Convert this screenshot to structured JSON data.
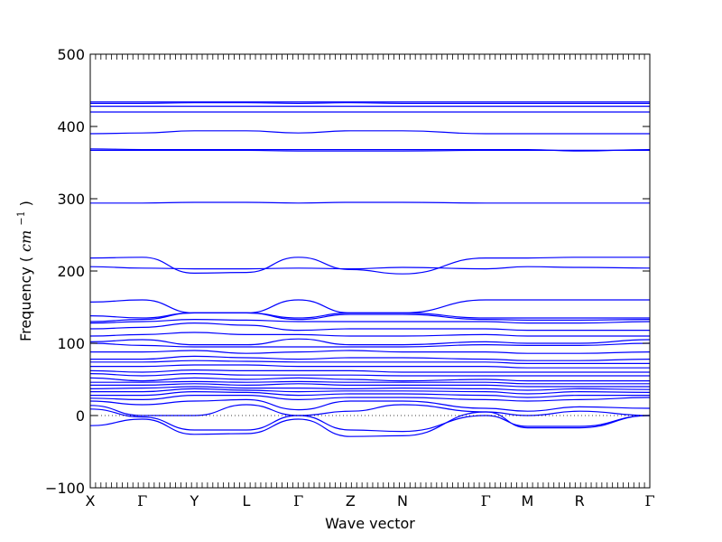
{
  "chart_data": {
    "type": "line",
    "title": "",
    "xlabel": "Wave vector",
    "ylabel": "Frequency",
    "ylabel_unit": "cm",
    "ylabel_unit_exponent": "−1",
    "ylim": [
      -100,
      500
    ],
    "yticks": [
      -100,
      0,
      100,
      200,
      300,
      400,
      500
    ],
    "ytick_labels": [
      "−100",
      "0",
      "100",
      "200",
      "300",
      "400",
      "500"
    ],
    "xlim": [
      0,
      10.75
    ],
    "xticks": [
      0,
      1,
      2,
      3,
      4,
      5,
      6,
      7.6,
      8.4,
      9.4,
      10.75
    ],
    "xtick_labels": [
      "X",
      "Γ",
      "Y",
      "L",
      "Γ",
      "Z",
      "N",
      "Γ",
      "M",
      "R",
      "Γ"
    ],
    "zero_line": 0,
    "line_color": "#0000ff",
    "series": [
      {
        "x": [
          0,
          1,
          2,
          3,
          4,
          5,
          6,
          7.6,
          8.4,
          9.4,
          10.75
        ],
        "y": [
          -14,
          -5,
          -26,
          -25,
          -5,
          -29,
          -28,
          5,
          -17,
          -17,
          0
        ]
      },
      {
        "x": [
          0,
          1,
          2,
          3,
          4,
          5,
          6,
          7.6,
          8.4,
          9.4,
          10.75
        ],
        "y": [
          9,
          -2,
          -20,
          -20,
          0,
          -20,
          -22,
          0,
          -15,
          -15,
          0
        ]
      },
      {
        "x": [
          0,
          1,
          2,
          3,
          4,
          5,
          6,
          7.6,
          8.4,
          9.4,
          10.75
        ],
        "y": [
          14,
          0,
          0,
          15,
          0,
          6,
          15,
          5,
          0,
          6,
          0
        ]
      },
      {
        "x": [
          0,
          1,
          2,
          3,
          4,
          5,
          6,
          7.6,
          8.4,
          9.4,
          10.75
        ],
        "y": [
          20,
          15,
          20,
          22,
          8,
          20,
          20,
          10,
          6,
          12,
          10
        ]
      },
      {
        "x": [
          0,
          1,
          2,
          3,
          4,
          5,
          6,
          7.6,
          8.4,
          9.4,
          10.75
        ],
        "y": [
          24,
          22,
          28,
          28,
          22,
          25,
          25,
          22,
          20,
          22,
          25
        ]
      },
      {
        "x": [
          0,
          1,
          2,
          3,
          4,
          5,
          6,
          7.6,
          8.4,
          9.4,
          10.75
        ],
        "y": [
          28,
          28,
          33,
          32,
          28,
          30,
          30,
          28,
          25,
          28,
          28
        ]
      },
      {
        "x": [
          0,
          1,
          2,
          3,
          4,
          5,
          6,
          7.6,
          8.4,
          9.4,
          10.75
        ],
        "y": [
          33,
          33,
          37,
          35,
          33,
          34,
          34,
          33,
          30,
          33,
          32
        ]
      },
      {
        "x": [
          0,
          1,
          2,
          3,
          4,
          5,
          6,
          7.6,
          8.4,
          9.4,
          10.75
        ],
        "y": [
          37,
          38,
          40,
          38,
          38,
          37,
          38,
          37,
          35,
          37,
          36
        ]
      },
      {
        "x": [
          0,
          1,
          2,
          3,
          4,
          5,
          6,
          7.6,
          8.4,
          9.4,
          10.75
        ],
        "y": [
          42,
          42,
          44,
          42,
          44,
          42,
          42,
          42,
          40,
          40,
          40
        ]
      },
      {
        "x": [
          0,
          1,
          2,
          3,
          4,
          5,
          6,
          7.6,
          8.4,
          9.4,
          10.75
        ],
        "y": [
          46,
          46,
          47,
          46,
          47,
          46,
          46,
          46,
          44,
          44,
          44
        ]
      },
      {
        "x": [
          0,
          1,
          2,
          3,
          4,
          5,
          6,
          7.6,
          8.4,
          9.4,
          10.75
        ],
        "y": [
          52,
          48,
          52,
          50,
          52,
          50,
          48,
          50,
          48,
          48,
          48
        ]
      },
      {
        "x": [
          0,
          1,
          2,
          3,
          4,
          5,
          6,
          7.6,
          8.4,
          9.4,
          10.75
        ],
        "y": [
          58,
          55,
          58,
          56,
          56,
          56,
          55,
          55,
          55,
          55,
          55
        ]
      },
      {
        "x": [
          0,
          1,
          2,
          3,
          4,
          5,
          6,
          7.6,
          8.4,
          9.4,
          10.75
        ],
        "y": [
          62,
          60,
          63,
          62,
          62,
          62,
          60,
          60,
          60,
          60,
          60
        ]
      },
      {
        "x": [
          0,
          1,
          2,
          3,
          4,
          5,
          6,
          7.6,
          8.4,
          9.4,
          10.75
        ],
        "y": [
          68,
          68,
          70,
          70,
          68,
          68,
          68,
          68,
          66,
          66,
          66
        ]
      },
      {
        "x": [
          0,
          1,
          2,
          3,
          4,
          5,
          6,
          7.6,
          8.4,
          9.4,
          10.75
        ],
        "y": [
          74,
          74,
          76,
          75,
          74,
          74,
          74,
          74,
          72,
          72,
          72
        ]
      },
      {
        "x": [
          0,
          1,
          2,
          3,
          4,
          5,
          6,
          7.6,
          8.4,
          9.4,
          10.75
        ],
        "y": [
          78,
          78,
          82,
          80,
          78,
          80,
          80,
          78,
          76,
          76,
          78
        ]
      },
      {
        "x": [
          0,
          1,
          2,
          3,
          4,
          5,
          6,
          7.6,
          8.4,
          9.4,
          10.75
        ],
        "y": [
          88,
          88,
          90,
          86,
          88,
          90,
          88,
          88,
          86,
          86,
          88
        ]
      },
      {
        "x": [
          0,
          1,
          2,
          3,
          4,
          5,
          6,
          7.6,
          8.4,
          9.4,
          10.75
        ],
        "y": [
          100,
          97,
          95,
          95,
          95,
          95,
          95,
          98,
          97,
          97,
          100
        ]
      },
      {
        "x": [
          0,
          1,
          2,
          3,
          4,
          5,
          6,
          7.6,
          8.4,
          9.4,
          10.75
        ],
        "y": [
          102,
          105,
          98,
          98,
          106,
          98,
          98,
          102,
          100,
          100,
          105
        ]
      },
      {
        "x": [
          0,
          1,
          2,
          3,
          4,
          5,
          6,
          7.6,
          8.4,
          9.4,
          10.75
        ],
        "y": [
          110,
          112,
          115,
          112,
          112,
          110,
          110,
          112,
          110,
          110,
          110
        ]
      },
      {
        "x": [
          0,
          1,
          2,
          3,
          4,
          5,
          6,
          7.6,
          8.4,
          9.4,
          10.75
        ],
        "y": [
          120,
          122,
          128,
          125,
          118,
          120,
          120,
          120,
          118,
          118,
          118
        ]
      },
      {
        "x": [
          0,
          1,
          2,
          3,
          4,
          5,
          6,
          7.6,
          8.4,
          9.4,
          10.75
        ],
        "y": [
          128,
          130,
          133,
          132,
          130,
          130,
          130,
          130,
          128,
          128,
          130
        ]
      },
      {
        "x": [
          0,
          1,
          2,
          3,
          4,
          5,
          6,
          7.6,
          8.4,
          9.4,
          10.75
        ],
        "y": [
          130,
          133,
          142,
          142,
          133,
          140,
          140,
          133,
          132,
          132,
          133
        ]
      },
      {
        "x": [
          0,
          1,
          2,
          3,
          4,
          5,
          6,
          7.6,
          8.4,
          9.4,
          10.75
        ],
        "y": [
          138,
          135,
          142,
          142,
          135,
          142,
          142,
          135,
          135,
          135,
          135
        ]
      },
      {
        "x": [
          0,
          1,
          2,
          3,
          4,
          5,
          6,
          7.6,
          8.4,
          9.4,
          10.75
        ],
        "y": [
          157,
          160,
          142,
          142,
          160,
          142,
          142,
          160,
          160,
          160,
          160
        ]
      },
      {
        "x": [
          0,
          1,
          2,
          3,
          4,
          5,
          6,
          7.6,
          8.4,
          9.4,
          10.75
        ],
        "y": [
          206,
          204,
          203,
          203,
          204,
          203,
          205,
          203,
          206,
          205,
          204
        ]
      },
      {
        "x": [
          0,
          1,
          2,
          3,
          4,
          5,
          6,
          7.6,
          8.4,
          9.4,
          10.75
        ],
        "y": [
          218,
          219,
          197,
          198,
          219,
          202,
          196,
          218,
          218,
          219,
          219
        ]
      },
      {
        "x": [
          0,
          1,
          2,
          3,
          4,
          5,
          6,
          7.6,
          8.4,
          9.4,
          10.75
        ],
        "y": [
          294,
          294,
          295,
          295,
          294,
          295,
          295,
          294,
          294,
          294,
          294
        ]
      },
      {
        "x": [
          0,
          1,
          2,
          3,
          4,
          5,
          6,
          7.6,
          8.4,
          9.4,
          10.75
        ],
        "y": [
          367,
          367,
          367,
          367,
          366,
          366,
          366,
          367,
          367,
          367,
          367
        ]
      },
      {
        "x": [
          0,
          1,
          2,
          3,
          4,
          5,
          6,
          7.6,
          8.4,
          9.4,
          10.75
        ],
        "y": [
          369,
          368,
          368,
          368,
          368,
          368,
          368,
          368,
          368,
          366,
          368
        ]
      },
      {
        "x": [
          0,
          1,
          2,
          3,
          4,
          5,
          6,
          7.6,
          8.4,
          9.4,
          10.75
        ],
        "y": [
          390,
          391,
          394,
          394,
          391,
          394,
          394,
          390,
          390,
          390,
          390
        ]
      },
      {
        "x": [
          0,
          1,
          2,
          3,
          4,
          5,
          6,
          7.6,
          8.4,
          9.4,
          10.75
        ],
        "y": [
          420,
          420,
          420,
          420,
          420,
          420,
          420,
          420,
          420,
          420,
          420
        ]
      },
      {
        "x": [
          0,
          1,
          2,
          3,
          4,
          5,
          6,
          7.6,
          8.4,
          9.4,
          10.75
        ],
        "y": [
          428,
          428,
          428,
          428,
          428,
          428,
          428,
          428,
          428,
          428,
          428
        ]
      },
      {
        "x": [
          0,
          1,
          2,
          3,
          4,
          5,
          6,
          7.6,
          8.4,
          9.4,
          10.75
        ],
        "y": [
          432,
          432,
          433,
          433,
          432,
          433,
          432,
          432,
          432,
          432,
          432
        ]
      },
      {
        "x": [
          0,
          1,
          2,
          3,
          4,
          5,
          6,
          7.6,
          8.4,
          9.4,
          10.75
        ],
        "y": [
          434,
          434,
          434,
          434,
          434,
          434,
          434,
          434,
          434,
          434,
          434
        ]
      }
    ]
  }
}
